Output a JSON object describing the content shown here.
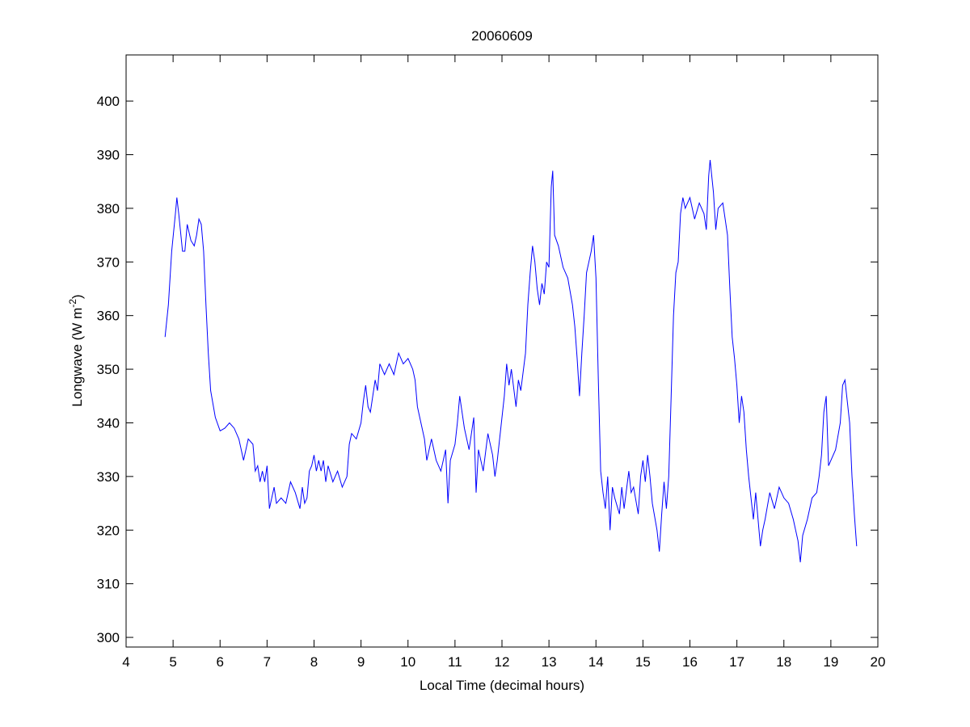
{
  "chart_data": {
    "type": "line",
    "title": "20060609",
    "xlabel": "Local Time (decimal hours)",
    "ylabel": "Longwave (W m",
    "ylabel_superscript": "-2",
    "ylabel_suffix": ")",
    "xlim": [
      4,
      20
    ],
    "ylim": [
      298.2,
      408.6
    ],
    "xticks": [
      4,
      5,
      6,
      7,
      8,
      9,
      10,
      11,
      12,
      13,
      14,
      15,
      16,
      17,
      18,
      19,
      20
    ],
    "yticks": [
      300,
      310,
      320,
      330,
      340,
      350,
      360,
      370,
      380,
      390,
      400
    ],
    "grid": false,
    "line_color": "#0000ff",
    "series": [
      {
        "name": "Longwave",
        "x": [
          4.83,
          4.9,
          4.97,
          5.05,
          5.08,
          5.12,
          5.2,
          5.25,
          5.3,
          5.38,
          5.45,
          5.5,
          5.55,
          5.6,
          5.65,
          5.7,
          5.75,
          5.8,
          5.9,
          6.0,
          6.1,
          6.2,
          6.3,
          6.4,
          6.5,
          6.55,
          6.6,
          6.7,
          6.75,
          6.8,
          6.85,
          6.9,
          6.95,
          7.0,
          7.05,
          7.1,
          7.15,
          7.2,
          7.3,
          7.4,
          7.5,
          7.6,
          7.7,
          7.75,
          7.8,
          7.85,
          7.9,
          7.95,
          8.0,
          8.05,
          8.1,
          8.15,
          8.2,
          8.25,
          8.3,
          8.4,
          8.5,
          8.6,
          8.7,
          8.75,
          8.8,
          8.9,
          9.0,
          9.05,
          9.1,
          9.15,
          9.2,
          9.3,
          9.35,
          9.4,
          9.5,
          9.6,
          9.7,
          9.8,
          9.9,
          10.0,
          10.1,
          10.15,
          10.2,
          10.3,
          10.35,
          10.4,
          10.5,
          10.6,
          10.7,
          10.8,
          10.85,
          10.9,
          11.0,
          11.05,
          11.1,
          11.15,
          11.2,
          11.3,
          11.4,
          11.45,
          11.5,
          11.6,
          11.7,
          11.8,
          11.85,
          11.9,
          12.0,
          12.05,
          12.1,
          12.15,
          12.2,
          12.3,
          12.35,
          12.4,
          12.5,
          12.55,
          12.6,
          12.65,
          12.7,
          12.75,
          12.8,
          12.85,
          12.9,
          12.95,
          13.0,
          13.05,
          13.08,
          13.12,
          13.2,
          13.3,
          13.4,
          13.5,
          13.55,
          13.6,
          13.65,
          13.7,
          13.75,
          13.8,
          13.85,
          13.9,
          13.95,
          14.0,
          14.05,
          14.1,
          14.15,
          14.2,
          14.25,
          14.3,
          14.35,
          14.4,
          14.5,
          14.55,
          14.6,
          14.7,
          14.75,
          14.8,
          14.9,
          14.95,
          15.0,
          15.05,
          15.1,
          15.15,
          15.2,
          15.3,
          15.35,
          15.4,
          15.45,
          15.5,
          15.55,
          15.6,
          15.65,
          15.7,
          15.75,
          15.8,
          15.85,
          15.9,
          16.0,
          16.1,
          16.2,
          16.3,
          16.35,
          16.4,
          16.43,
          16.5,
          16.55,
          16.6,
          16.7,
          16.8,
          16.85,
          16.9,
          16.95,
          17.0,
          17.05,
          17.1,
          17.15,
          17.2,
          17.25,
          17.3,
          17.35,
          17.4,
          17.45,
          17.5,
          17.55,
          17.6,
          17.7,
          17.8,
          17.9,
          18.0,
          18.1,
          18.2,
          18.25,
          18.3,
          18.35,
          18.4,
          18.5,
          18.6,
          18.7,
          18.75,
          18.8,
          18.85,
          18.9,
          18.95,
          19.0,
          19.1,
          19.2,
          19.25,
          19.3,
          19.35,
          19.4,
          19.45,
          19.5,
          19.55
        ],
        "y": [
          356,
          362,
          372,
          379,
          382,
          379,
          372,
          372,
          377,
          374,
          373,
          375,
          378,
          377,
          372,
          362,
          353,
          346,
          341,
          338.5,
          339,
          340,
          339,
          337,
          333,
          335,
          337,
          336,
          331,
          332,
          329,
          331,
          329,
          332,
          324,
          326,
          328,
          325,
          326,
          325,
          329,
          327,
          324,
          328,
          325,
          326,
          331,
          332,
          334,
          331,
          333,
          331,
          333,
          329,
          332,
          329,
          331,
          328,
          330,
          336,
          338,
          337,
          340,
          344,
          347,
          343,
          342,
          348,
          346,
          351,
          349,
          351,
          349,
          353,
          351,
          352,
          350,
          348,
          343,
          339,
          337,
          333,
          337,
          333,
          331,
          335,
          325,
          333,
          336,
          340,
          345,
          342,
          339,
          335,
          341,
          327,
          335,
          331,
          338,
          334,
          330,
          333,
          341,
          345,
          351,
          347,
          350,
          343,
          348,
          346,
          353,
          362,
          368,
          373,
          370,
          365,
          362,
          366,
          364,
          370,
          369,
          384,
          387,
          375,
          373,
          369,
          367,
          362,
          358,
          352,
          345,
          353,
          360,
          368,
          370,
          372,
          375,
          367,
          348,
          331,
          327,
          324,
          330,
          320,
          328,
          326,
          323,
          328,
          324,
          331,
          327,
          328,
          323,
          330,
          333,
          329,
          334,
          330,
          325,
          320,
          316,
          323,
          329,
          324,
          330,
          345,
          360,
          368,
          370,
          379,
          382,
          380,
          382,
          378,
          381,
          379,
          376,
          386,
          389,
          383,
          376,
          380,
          381,
          375,
          365,
          356,
          352,
          347,
          340,
          345,
          342,
          335,
          330,
          326,
          322,
          327,
          322,
          317,
          320,
          322,
          327,
          324,
          328,
          326,
          325,
          322,
          320,
          318,
          314,
          319,
          322,
          326,
          327,
          330,
          334,
          342,
          345,
          332,
          333,
          335,
          340,
          347,
          348,
          344,
          340,
          330,
          323,
          317
        ]
      }
    ]
  }
}
